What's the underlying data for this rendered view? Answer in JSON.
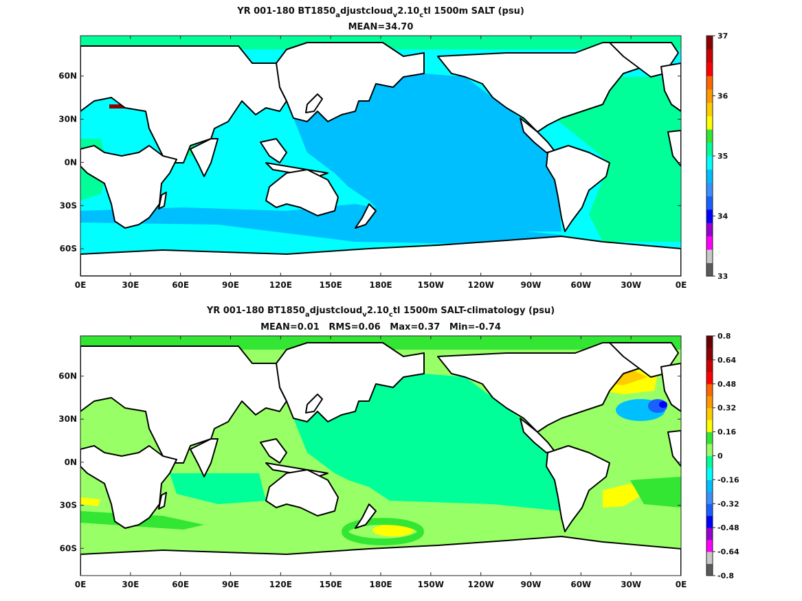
{
  "chart_data": [
    {
      "type": "heatmap",
      "title_pre": "YR 001-180 BT1850",
      "title_sub1": "a",
      "title_mid1": "djustcloud",
      "title_sub2": "v",
      "title_mid2": "2.10",
      "title_sub3": "c",
      "title_post": "tl 1500m SALT (psu)",
      "subtitle": "MEAN=34.70",
      "x_ticks": [
        "0E",
        "30E",
        "60E",
        "90E",
        "120E",
        "150E",
        "180E",
        "150W",
        "120W",
        "90W",
        "60W",
        "30W",
        "0E"
      ],
      "xlim": [
        0,
        360
      ],
      "y_ticks": [
        "60N",
        "30N",
        "0N",
        "30S",
        "60S"
      ],
      "y_tick_values": [
        60,
        30,
        0,
        -30,
        -60
      ],
      "ylim": [
        -79,
        88
      ],
      "colorbar": {
        "min": 33,
        "max": 37,
        "tick_labels": [
          "37",
          "36",
          "35",
          "34",
          "33"
        ],
        "tick_values": [
          37,
          36,
          35,
          34,
          33
        ],
        "colors": [
          "#5a5a5a",
          "#c8c8c8",
          "#ff00ff",
          "#9a00cc",
          "#0000ff",
          "#1a60ff",
          "#3a90ff",
          "#00bfff",
          "#00ffff",
          "#00ff99",
          "#33e633",
          "#ffff00",
          "#ffcc00",
          "#ff9900",
          "#ff6600",
          "#ff0000",
          "#cc0000",
          "#8b0000"
        ]
      },
      "regions": [
        {
          "name": "pacific",
          "value": 34.65,
          "color": "#00bfff"
        },
        {
          "name": "southern-band",
          "value": 34.7,
          "color": "#00bfff"
        },
        {
          "name": "indian-south",
          "value": 34.75,
          "color": "#00ffff"
        },
        {
          "name": "atlantic",
          "value": 34.95,
          "color": "#00ff99"
        },
        {
          "name": "arabian-sea",
          "value": 34.95,
          "color": "#00ff99"
        },
        {
          "name": "mediterranean",
          "value": 36.8,
          "color": "#8b0000"
        },
        {
          "name": "japan-sea",
          "value": 34.1,
          "color": "#3a90ff"
        }
      ]
    },
    {
      "type": "heatmap",
      "title_pre": "YR 001-180 BT1850",
      "title_sub1": "a",
      "title_mid1": "djustcloud",
      "title_sub2": "v",
      "title_mid2": "2.10",
      "title_sub3": "c",
      "title_post": "tl 1500m SALT-climatology (psu)",
      "subtitle": "MEAN=0.01   RMS=0.06   Max=0.37   Min=-0.74",
      "x_ticks": [
        "0E",
        "30E",
        "60E",
        "90E",
        "120E",
        "150E",
        "180E",
        "150W",
        "120W",
        "90W",
        "60W",
        "30W",
        "0E"
      ],
      "xlim": [
        0,
        360
      ],
      "y_ticks": [
        "60N",
        "30N",
        "0N",
        "30S",
        "60S"
      ],
      "y_tick_values": [
        60,
        30,
        0,
        -30,
        -60
      ],
      "ylim": [
        -79,
        88
      ],
      "colorbar": {
        "min": -0.8,
        "max": 0.8,
        "tick_labels": [
          "0.8",
          "0.64",
          "0.48",
          "0.32",
          "0.16",
          "0",
          "-0.16",
          "-0.32",
          "-0.48",
          "-0.64",
          "-0.8"
        ],
        "tick_values": [
          0.8,
          0.64,
          0.48,
          0.32,
          0.16,
          0,
          -0.16,
          -0.32,
          -0.48,
          -0.64,
          -0.8
        ],
        "colors": [
          "#5a5a5a",
          "#c8c8c8",
          "#ff00ff",
          "#9a00cc",
          "#0000ff",
          "#1a60ff",
          "#3a90ff",
          "#00bfff",
          "#00ffff",
          "#00ff99",
          "#99ff66",
          "#33e633",
          "#ffff00",
          "#ffcc00",
          "#ff9900",
          "#ff6600",
          "#ff0000",
          "#cc0000",
          "#8b0000",
          "#6b0000"
        ]
      },
      "regions": [
        {
          "name": "pacific",
          "value": 0.02,
          "color": "#00ff99"
        },
        {
          "name": "indian",
          "value": 0.05,
          "color": "#99ff66"
        },
        {
          "name": "southern",
          "value": 0.05,
          "color": "#99ff66"
        },
        {
          "name": "atlantic",
          "value": 0.05,
          "color": "#99ff66"
        },
        {
          "name": "north-atlantic-positive",
          "value": 0.3,
          "color": "#ffcc00"
        },
        {
          "name": "gulf-stream-negative",
          "value": -0.5,
          "color": "#0000ff"
        },
        {
          "name": "south-atlantic-positive",
          "value": 0.3,
          "color": "#ffff00"
        },
        {
          "name": "south-pacific-positive",
          "value": 0.25,
          "color": "#ffff00"
        }
      ]
    }
  ]
}
